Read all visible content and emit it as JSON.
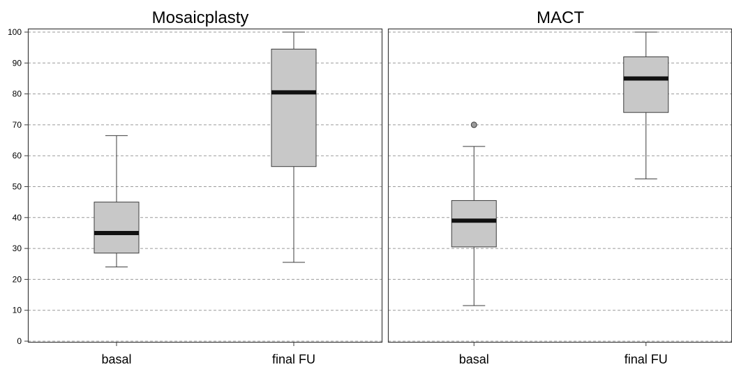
{
  "chart_data": [
    {
      "type": "boxplot",
      "title": "Mosaicplasty",
      "xlabel": "",
      "ylabel": "",
      "ylim": [
        0,
        100
      ],
      "yticks": [
        0,
        10,
        20,
        30,
        40,
        50,
        60,
        70,
        80,
        90,
        100
      ],
      "grid": true,
      "categories": [
        "basal",
        "final FU"
      ],
      "boxes": [
        {
          "category": "basal",
          "min": 24,
          "q1": 28.5,
          "median": 35,
          "q3": 45,
          "max": 66.5,
          "outliers": []
        },
        {
          "category": "final FU",
          "min": 25.5,
          "q1": 56.5,
          "median": 80.5,
          "q3": 94.5,
          "max": 100,
          "outliers": []
        }
      ]
    },
    {
      "type": "boxplot",
      "title": "MACT",
      "xlabel": "",
      "ylabel": "",
      "ylim": [
        0,
        100
      ],
      "yticks": [
        0,
        10,
        20,
        30,
        40,
        50,
        60,
        70,
        80,
        90,
        100
      ],
      "grid": true,
      "categories": [
        "basal",
        "final FU"
      ],
      "boxes": [
        {
          "category": "basal",
          "min": 11.5,
          "q1": 30.5,
          "median": 39,
          "q3": 45.5,
          "max": 63,
          "outliers": [
            70
          ]
        },
        {
          "category": "final FU",
          "min": 52.5,
          "q1": 74,
          "median": 85,
          "q3": 92,
          "max": 100,
          "outliers": []
        }
      ]
    }
  ],
  "colors": {
    "box_fill": "#c8c8c8",
    "box_stroke": "#3c3c3c",
    "median": "#111111",
    "grid": "#9a9a9a",
    "outlier_fill": "#9a9a9a",
    "frame": "#3c3c3c"
  }
}
